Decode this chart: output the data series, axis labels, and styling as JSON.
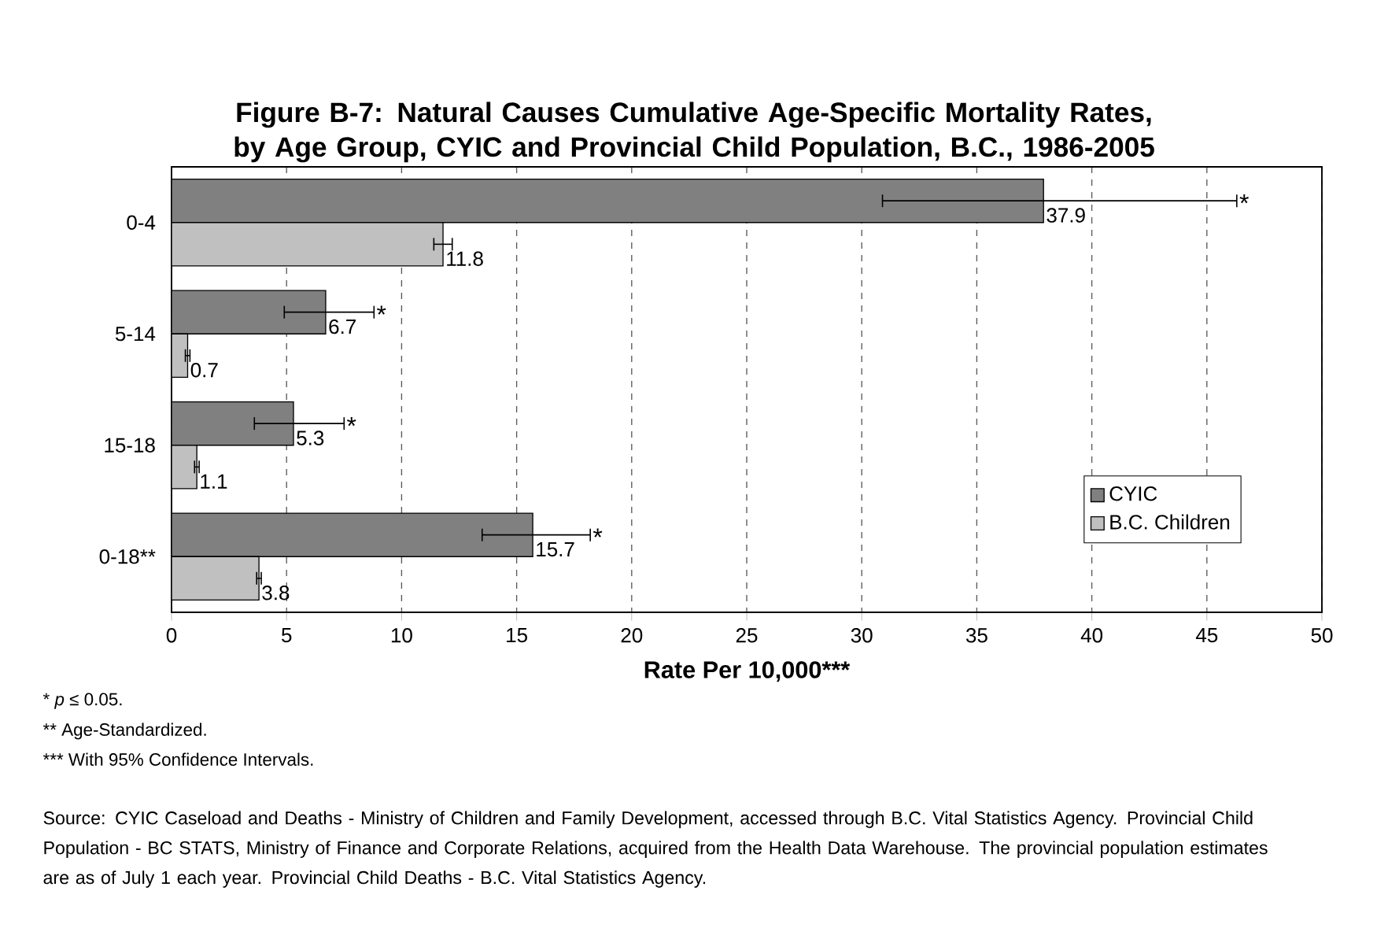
{
  "chart_data": {
    "type": "bar",
    "orientation": "horizontal",
    "title": "Figure B-7:  Natural Causes Cumulative Age-Specific Mortality Rates, by Age Group, CYIC and Provincial Child Population, B.C., 1986-2005",
    "xlabel": "Rate Per 10,000***",
    "categories": [
      "0-4",
      "5-14",
      "15-18",
      "0-18**"
    ],
    "series": [
      {
        "name": "CYIC",
        "color": "#808080",
        "values": [
          37.9,
          6.7,
          5.3,
          15.7
        ],
        "errors": [
          [
            30.9,
            46.3
          ],
          [
            4.9,
            8.8
          ],
          [
            3.6,
            7.5
          ],
          [
            13.5,
            18.2
          ]
        ]
      },
      {
        "name": "B.C. Children",
        "color": "#c0c0c0",
        "values": [
          11.8,
          0.7,
          1.1,
          3.8
        ],
        "errors": [
          [
            11.4,
            12.2
          ],
          [
            0.6,
            0.8
          ],
          [
            1.0,
            1.2
          ],
          [
            3.7,
            3.9
          ]
        ]
      }
    ],
    "xlim": [
      0,
      50
    ],
    "xticks": [
      0,
      5,
      10,
      15,
      20,
      25,
      30,
      35,
      40,
      45,
      50
    ],
    "grid": "x",
    "legend": "bottom right",
    "data_labels": true,
    "annotations": [
      "*",
      "*",
      "*",
      "*",
      "*   *p* ≤ 0.05.",
      "**  Age-Standardized.",
      "*** With 95% Confidence Intervals.",
      "Source:  CYIC Caseload and Deaths - Ministry of Children and Family Development, accessed through B.C. Vital Statistics Agency.  Provincial Child Population - BC STATS, Ministry of Finance and Corporate Relations, acquired from the Health Data Warehouse.  The provincial population estimates are as of July 1 each year.  Provincial Child Deaths - B.C. Vital Statistics Agency."
    ]
  }
}
